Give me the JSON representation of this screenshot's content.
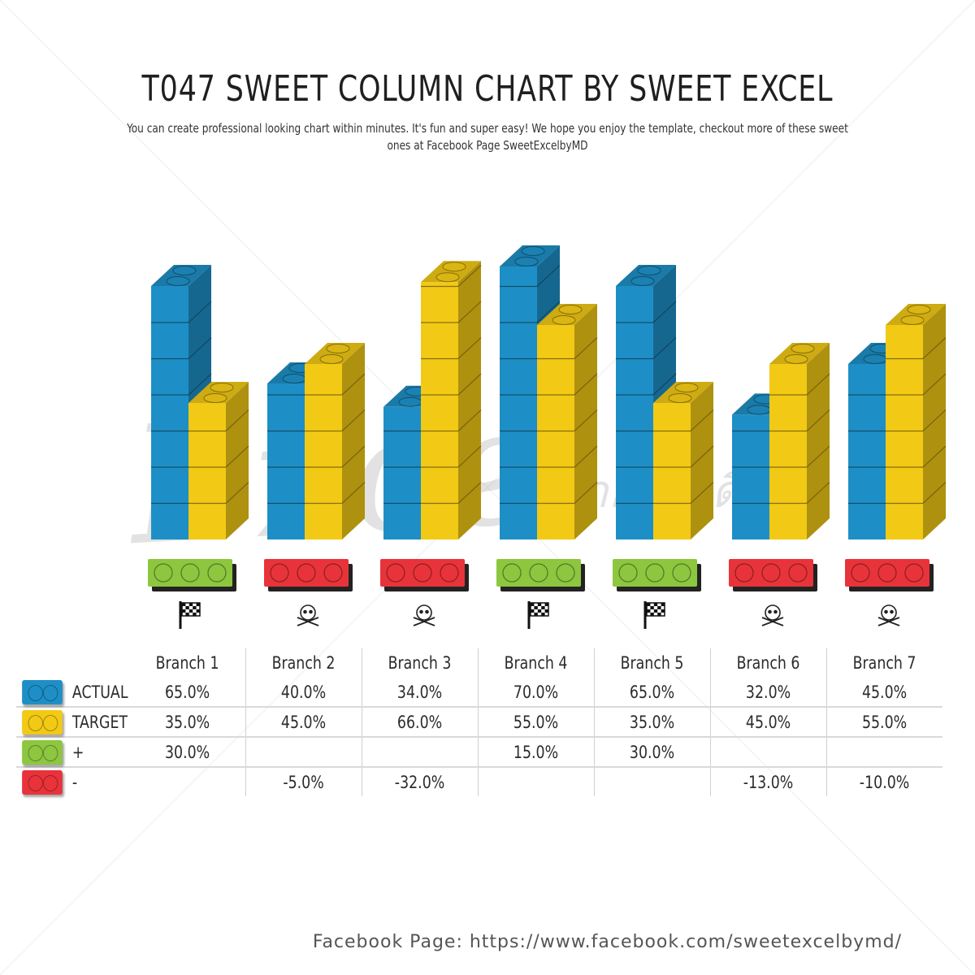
{
  "title": "T047 SWEET COLUMN CHART BY SWEET EXCEL",
  "subtitle": "You can create professional looking chart within minutes. It's fun and super easy! We hope you enjoy the template, checkout more of these sweet ones at Facebook Page SweetExcelbyMD",
  "watermark": "Excel",
  "watermark_tail": "ง่ายนิดเดียว",
  "footer": "Facebook Page: https://www.facebook.com/sweetexcelbymd/",
  "colors": {
    "actual": "#1e8fc6",
    "target": "#f2c915",
    "plus": "#8dc63f",
    "minus": "#e8333a"
  },
  "chart_data": {
    "type": "bar",
    "categories": [
      "Branch 1",
      "Branch 2",
      "Branch 3",
      "Branch 4",
      "Branch 5",
      "Branch 6",
      "Branch 7"
    ],
    "series": [
      {
        "name": "ACTUAL",
        "values": [
          65.0,
          40.0,
          34.0,
          70.0,
          65.0,
          32.0,
          45.0
        ]
      },
      {
        "name": "TARGET",
        "values": [
          35.0,
          45.0,
          66.0,
          55.0,
          35.0,
          45.0,
          55.0
        ]
      }
    ],
    "status": [
      "plus",
      "minus",
      "minus",
      "plus",
      "plus",
      "minus",
      "minus"
    ],
    "status_icons": [
      "checkered-flag-icon",
      "skull-icon",
      "skull-icon",
      "checkered-flag-icon",
      "checkered-flag-icon",
      "skull-icon",
      "skull-icon"
    ],
    "ylim": [
      0,
      80
    ]
  },
  "table": {
    "headers": [
      "Branch 1",
      "Branch 2",
      "Branch 3",
      "Branch 4",
      "Branch 5",
      "Branch 6",
      "Branch 7"
    ],
    "rows": [
      {
        "key": "actual",
        "label": "ACTUAL",
        "cells": [
          "65.0%",
          "40.0%",
          "34.0%",
          "70.0%",
          "65.0%",
          "32.0%",
          "45.0%"
        ]
      },
      {
        "key": "target",
        "label": "TARGET",
        "cells": [
          "35.0%",
          "45.0%",
          "66.0%",
          "55.0%",
          "35.0%",
          "45.0%",
          "55.0%"
        ]
      },
      {
        "key": "plus",
        "label": "+",
        "cells": [
          "30.0%",
          "",
          "",
          "15.0%",
          "30.0%",
          "",
          ""
        ]
      },
      {
        "key": "minus",
        "label": "-",
        "cells": [
          "",
          "-5.0%",
          "-32.0%",
          "",
          "",
          "-13.0%",
          "-10.0%"
        ]
      }
    ]
  }
}
